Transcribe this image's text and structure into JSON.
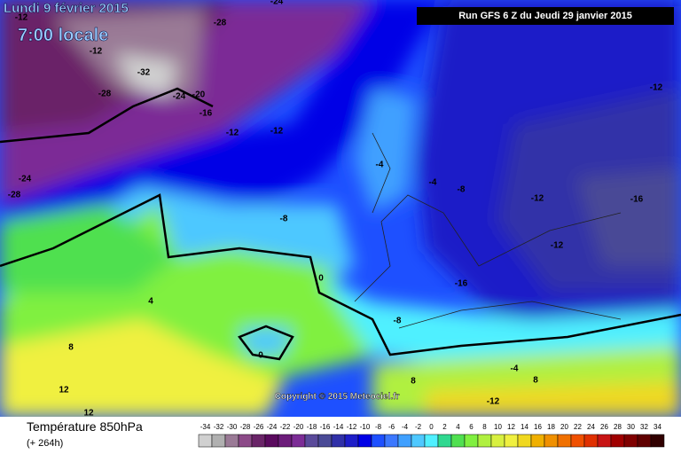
{
  "header": {
    "date": "Lundi 9 février 2015",
    "time": "7:00 locale",
    "run": "Run GFS 6 Z du Jeudi 29 janvier 2015"
  },
  "map": {
    "labels": [
      "-12",
      "-12",
      "-28",
      "-24",
      "-32",
      "-28",
      "-24",
      "-20",
      "-16",
      "-12",
      "-12",
      "-12",
      "-24",
      "-28",
      "-4",
      "-4",
      "-8",
      "-12",
      "-16",
      "-8",
      "-12",
      "-16",
      "0",
      "4",
      "-8",
      "8",
      "0",
      "-4",
      "8",
      "8",
      "12",
      "12",
      "-12"
    ],
    "copyright": "Copyright © 2015 Meteociel.fr"
  },
  "footer": {
    "title": "Température 850hPa",
    "range": "(+ 264h)"
  },
  "legend": [
    {
      "label": -34,
      "color": "#d0d0d0"
    },
    {
      "label": -32,
      "color": "#b0b0b0"
    },
    {
      "label": -30,
      "color": "#9a7a96"
    },
    {
      "label": -28,
      "color": "#8c4a88"
    },
    {
      "label": -26,
      "color": "#6a2468"
    },
    {
      "label": -24,
      "color": "#5a0a5e"
    },
    {
      "label": -22,
      "color": "#6c1c7a"
    },
    {
      "label": -20,
      "color": "#7c2c96"
    },
    {
      "label": -18,
      "color": "#5a4a9a"
    },
    {
      "label": -16,
      "color": "#4a4a96"
    },
    {
      "label": -14,
      "color": "#3030a8"
    },
    {
      "label": -12,
      "color": "#1e1ec8"
    },
    {
      "label": -10,
      "color": "#0000e6"
    },
    {
      "label": -8,
      "color": "#1e50ff"
    },
    {
      "label": -6,
      "color": "#3c78ff"
    },
    {
      "label": -4,
      "color": "#40a0ff"
    },
    {
      "label": -2,
      "color": "#4ec8ff"
    },
    {
      "label": 0,
      "color": "#50f0ff"
    },
    {
      "label": 2,
      "color": "#30d890"
    },
    {
      "label": 4,
      "color": "#50e050"
    },
    {
      "label": 6,
      "color": "#80f040"
    },
    {
      "label": 8,
      "color": "#b0f040"
    },
    {
      "label": 10,
      "color": "#d8f040"
    },
    {
      "label": 12,
      "color": "#f0f040"
    },
    {
      "label": 14,
      "color": "#f0d820"
    },
    {
      "label": 16,
      "color": "#f0b000"
    },
    {
      "label": 18,
      "color": "#f09000"
    },
    {
      "label": 20,
      "color": "#f07000"
    },
    {
      "label": 22,
      "color": "#f05000"
    },
    {
      "label": 24,
      "color": "#e03000"
    },
    {
      "label": 26,
      "color": "#c81414"
    },
    {
      "label": 28,
      "color": "#a00000"
    },
    {
      "label": 30,
      "color": "#800000"
    },
    {
      "label": 32,
      "color": "#600000"
    },
    {
      "label": 34,
      "color": "#300000"
    }
  ]
}
